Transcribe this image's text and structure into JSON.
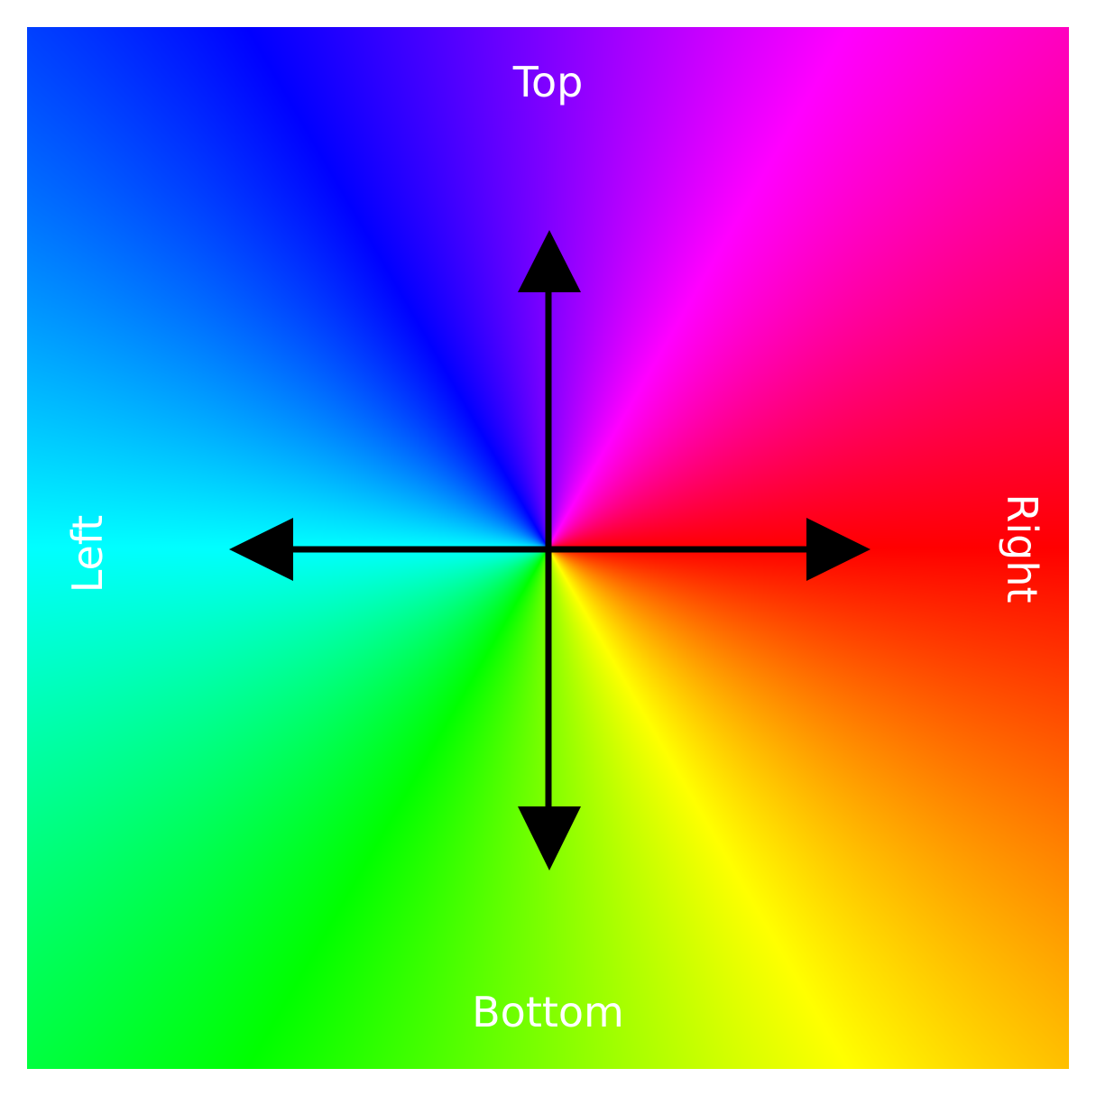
{
  "labels": {
    "top": "Top",
    "bottom": "Bottom",
    "left": "Left",
    "right": "Right"
  },
  "colors": {
    "label_text": "#ffffff",
    "arrow": "#000000",
    "background": "#ffffff",
    "hue_stops": [
      "#ff0000",
      "#ffff00",
      "#00ff00",
      "#00ffff",
      "#0000ff",
      "#ff00ff"
    ]
  },
  "icons": {
    "up": "arrow-up-icon",
    "down": "arrow-down-icon",
    "left": "arrow-left-icon",
    "right": "arrow-right-icon"
  }
}
